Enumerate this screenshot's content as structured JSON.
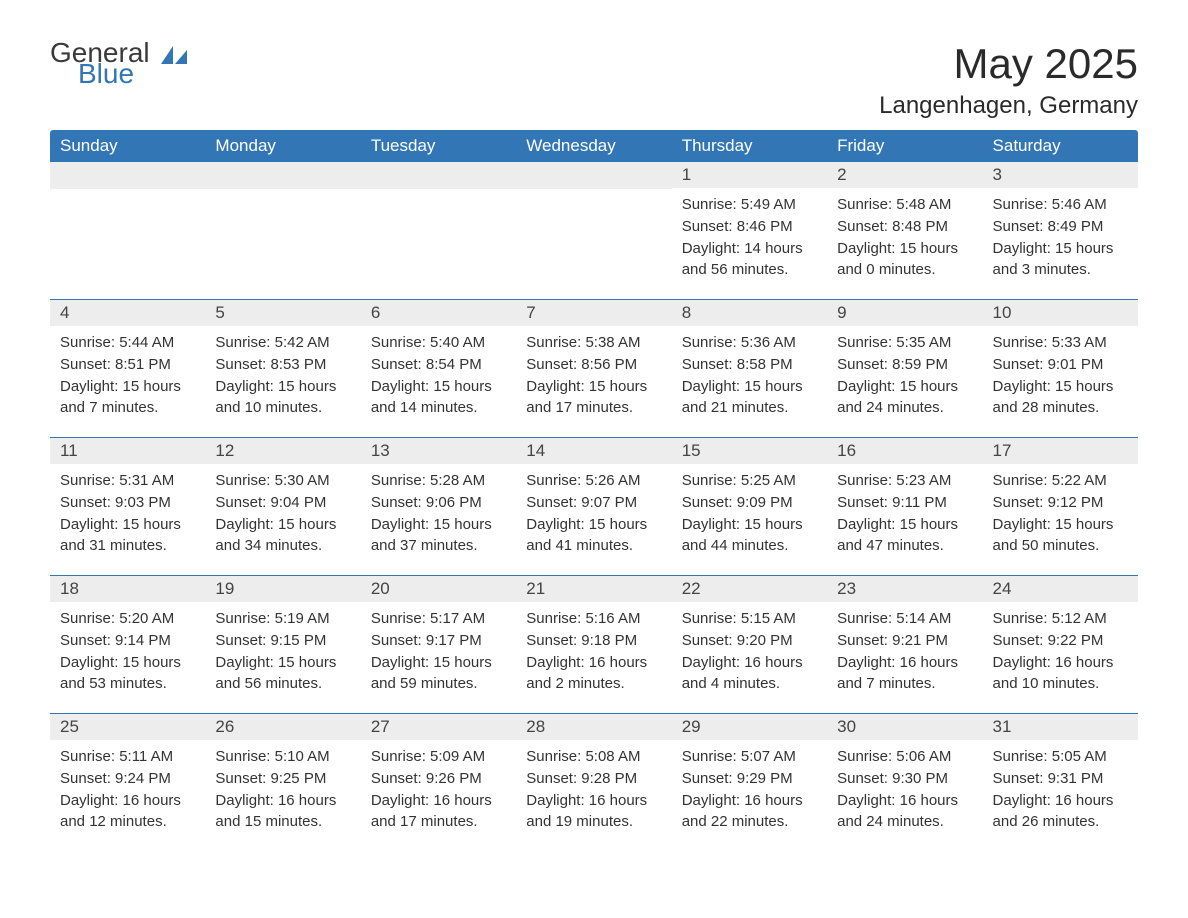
{
  "brand": {
    "part1": "General",
    "part2": "Blue",
    "icon_color": "#3276b5"
  },
  "title": "May 2025",
  "location": "Langenhagen, Germany",
  "colors": {
    "header_bg": "#3276b5",
    "header_text": "#ffffff",
    "daynum_bg": "#ededed",
    "row_divider": "#3276b5",
    "body_text": "#333333",
    "background": "#ffffff"
  },
  "day_headers": [
    "Sunday",
    "Monday",
    "Tuesday",
    "Wednesday",
    "Thursday",
    "Friday",
    "Saturday"
  ],
  "weeks": [
    [
      {
        "n": "",
        "sunrise": "",
        "sunset": "",
        "daylight": ""
      },
      {
        "n": "",
        "sunrise": "",
        "sunset": "",
        "daylight": ""
      },
      {
        "n": "",
        "sunrise": "",
        "sunset": "",
        "daylight": ""
      },
      {
        "n": "",
        "sunrise": "",
        "sunset": "",
        "daylight": ""
      },
      {
        "n": "1",
        "sunrise": "Sunrise: 5:49 AM",
        "sunset": "Sunset: 8:46 PM",
        "daylight": "Daylight: 14 hours and 56 minutes."
      },
      {
        "n": "2",
        "sunrise": "Sunrise: 5:48 AM",
        "sunset": "Sunset: 8:48 PM",
        "daylight": "Daylight: 15 hours and 0 minutes."
      },
      {
        "n": "3",
        "sunrise": "Sunrise: 5:46 AM",
        "sunset": "Sunset: 8:49 PM",
        "daylight": "Daylight: 15 hours and 3 minutes."
      }
    ],
    [
      {
        "n": "4",
        "sunrise": "Sunrise: 5:44 AM",
        "sunset": "Sunset: 8:51 PM",
        "daylight": "Daylight: 15 hours and 7 minutes."
      },
      {
        "n": "5",
        "sunrise": "Sunrise: 5:42 AM",
        "sunset": "Sunset: 8:53 PM",
        "daylight": "Daylight: 15 hours and 10 minutes."
      },
      {
        "n": "6",
        "sunrise": "Sunrise: 5:40 AM",
        "sunset": "Sunset: 8:54 PM",
        "daylight": "Daylight: 15 hours and 14 minutes."
      },
      {
        "n": "7",
        "sunrise": "Sunrise: 5:38 AM",
        "sunset": "Sunset: 8:56 PM",
        "daylight": "Daylight: 15 hours and 17 minutes."
      },
      {
        "n": "8",
        "sunrise": "Sunrise: 5:36 AM",
        "sunset": "Sunset: 8:58 PM",
        "daylight": "Daylight: 15 hours and 21 minutes."
      },
      {
        "n": "9",
        "sunrise": "Sunrise: 5:35 AM",
        "sunset": "Sunset: 8:59 PM",
        "daylight": "Daylight: 15 hours and 24 minutes."
      },
      {
        "n": "10",
        "sunrise": "Sunrise: 5:33 AM",
        "sunset": "Sunset: 9:01 PM",
        "daylight": "Daylight: 15 hours and 28 minutes."
      }
    ],
    [
      {
        "n": "11",
        "sunrise": "Sunrise: 5:31 AM",
        "sunset": "Sunset: 9:03 PM",
        "daylight": "Daylight: 15 hours and 31 minutes."
      },
      {
        "n": "12",
        "sunrise": "Sunrise: 5:30 AM",
        "sunset": "Sunset: 9:04 PM",
        "daylight": "Daylight: 15 hours and 34 minutes."
      },
      {
        "n": "13",
        "sunrise": "Sunrise: 5:28 AM",
        "sunset": "Sunset: 9:06 PM",
        "daylight": "Daylight: 15 hours and 37 minutes."
      },
      {
        "n": "14",
        "sunrise": "Sunrise: 5:26 AM",
        "sunset": "Sunset: 9:07 PM",
        "daylight": "Daylight: 15 hours and 41 minutes."
      },
      {
        "n": "15",
        "sunrise": "Sunrise: 5:25 AM",
        "sunset": "Sunset: 9:09 PM",
        "daylight": "Daylight: 15 hours and 44 minutes."
      },
      {
        "n": "16",
        "sunrise": "Sunrise: 5:23 AM",
        "sunset": "Sunset: 9:11 PM",
        "daylight": "Daylight: 15 hours and 47 minutes."
      },
      {
        "n": "17",
        "sunrise": "Sunrise: 5:22 AM",
        "sunset": "Sunset: 9:12 PM",
        "daylight": "Daylight: 15 hours and 50 minutes."
      }
    ],
    [
      {
        "n": "18",
        "sunrise": "Sunrise: 5:20 AM",
        "sunset": "Sunset: 9:14 PM",
        "daylight": "Daylight: 15 hours and 53 minutes."
      },
      {
        "n": "19",
        "sunrise": "Sunrise: 5:19 AM",
        "sunset": "Sunset: 9:15 PM",
        "daylight": "Daylight: 15 hours and 56 minutes."
      },
      {
        "n": "20",
        "sunrise": "Sunrise: 5:17 AM",
        "sunset": "Sunset: 9:17 PM",
        "daylight": "Daylight: 15 hours and 59 minutes."
      },
      {
        "n": "21",
        "sunrise": "Sunrise: 5:16 AM",
        "sunset": "Sunset: 9:18 PM",
        "daylight": "Daylight: 16 hours and 2 minutes."
      },
      {
        "n": "22",
        "sunrise": "Sunrise: 5:15 AM",
        "sunset": "Sunset: 9:20 PM",
        "daylight": "Daylight: 16 hours and 4 minutes."
      },
      {
        "n": "23",
        "sunrise": "Sunrise: 5:14 AM",
        "sunset": "Sunset: 9:21 PM",
        "daylight": "Daylight: 16 hours and 7 minutes."
      },
      {
        "n": "24",
        "sunrise": "Sunrise: 5:12 AM",
        "sunset": "Sunset: 9:22 PM",
        "daylight": "Daylight: 16 hours and 10 minutes."
      }
    ],
    [
      {
        "n": "25",
        "sunrise": "Sunrise: 5:11 AM",
        "sunset": "Sunset: 9:24 PM",
        "daylight": "Daylight: 16 hours and 12 minutes."
      },
      {
        "n": "26",
        "sunrise": "Sunrise: 5:10 AM",
        "sunset": "Sunset: 9:25 PM",
        "daylight": "Daylight: 16 hours and 15 minutes."
      },
      {
        "n": "27",
        "sunrise": "Sunrise: 5:09 AM",
        "sunset": "Sunset: 9:26 PM",
        "daylight": "Daylight: 16 hours and 17 minutes."
      },
      {
        "n": "28",
        "sunrise": "Sunrise: 5:08 AM",
        "sunset": "Sunset: 9:28 PM",
        "daylight": "Daylight: 16 hours and 19 minutes."
      },
      {
        "n": "29",
        "sunrise": "Sunrise: 5:07 AM",
        "sunset": "Sunset: 9:29 PM",
        "daylight": "Daylight: 16 hours and 22 minutes."
      },
      {
        "n": "30",
        "sunrise": "Sunrise: 5:06 AM",
        "sunset": "Sunset: 9:30 PM",
        "daylight": "Daylight: 16 hours and 24 minutes."
      },
      {
        "n": "31",
        "sunrise": "Sunrise: 5:05 AM",
        "sunset": "Sunset: 9:31 PM",
        "daylight": "Daylight: 16 hours and 26 minutes."
      }
    ]
  ]
}
